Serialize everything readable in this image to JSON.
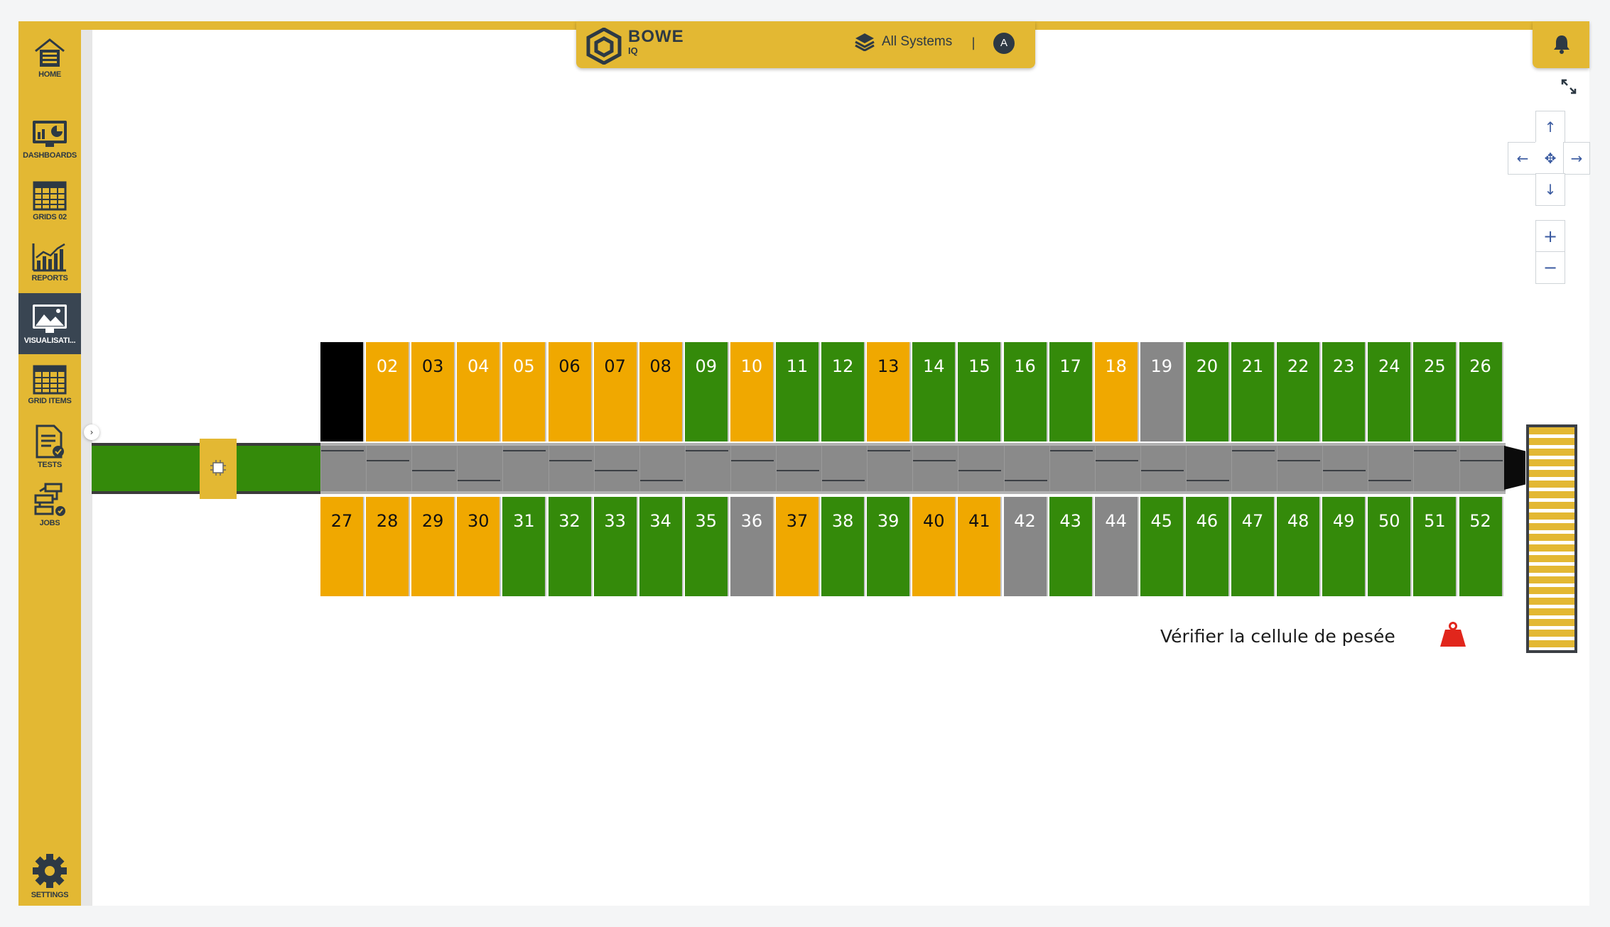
{
  "header": {
    "brand": "BOWE",
    "brand_sub": "IQ",
    "systems_label": "All Systems",
    "separator": "|",
    "avatar_initial": "A"
  },
  "sidebar": {
    "items": [
      {
        "label": "HOME",
        "icon": "home-icon"
      },
      {
        "label": "DASHBOARDS",
        "icon": "dashboard-icon"
      },
      {
        "label": "GRIDS 02",
        "icon": "grid-icon"
      },
      {
        "label": "REPORTS",
        "icon": "chart-icon"
      },
      {
        "label": "VISUALISATI...",
        "icon": "visualisation-icon",
        "active": true
      },
      {
        "label": "GRID ITEMS",
        "icon": "grid-icon"
      },
      {
        "label": "TESTS",
        "icon": "document-check-icon"
      },
      {
        "label": "JOBS",
        "icon": "workflow-icon"
      },
      {
        "label": "SETTINGS",
        "icon": "gear-icon"
      }
    ]
  },
  "controls": {
    "up": "↑",
    "down": "↓",
    "left": "←",
    "right": "→",
    "center": "✥",
    "zoom_in": "+",
    "zoom_out": "−"
  },
  "machine": {
    "status_message": "Vérifier la cellule de pesée",
    "status_icon": "weight-icon",
    "status_icon_color": "#e1261c",
    "colors": {
      "yellow": "#f0a800",
      "green": "#348a0a",
      "gray": "#878787",
      "black": "#000000"
    },
    "top_bins": [
      {
        "label": "",
        "color": "black"
      },
      {
        "label": "02",
        "color": "yellow"
      },
      {
        "label": "03",
        "color": "yellow",
        "dark": true
      },
      {
        "label": "04",
        "color": "yellow"
      },
      {
        "label": "05",
        "color": "yellow"
      },
      {
        "label": "06",
        "color": "yellow",
        "dark": true
      },
      {
        "label": "07",
        "color": "yellow",
        "dark": true
      },
      {
        "label": "08",
        "color": "yellow",
        "dark": true
      },
      {
        "label": "09",
        "color": "green"
      },
      {
        "label": "10",
        "color": "yellow"
      },
      {
        "label": "11",
        "color": "green"
      },
      {
        "label": "12",
        "color": "green"
      },
      {
        "label": "13",
        "color": "yellow",
        "dark": true
      },
      {
        "label": "14",
        "color": "green"
      },
      {
        "label": "15",
        "color": "green"
      },
      {
        "label": "16",
        "color": "green"
      },
      {
        "label": "17",
        "color": "green"
      },
      {
        "label": "18",
        "color": "yellow"
      },
      {
        "label": "19",
        "color": "gray"
      },
      {
        "label": "20",
        "color": "green"
      },
      {
        "label": "21",
        "color": "green"
      },
      {
        "label": "22",
        "color": "green"
      },
      {
        "label": "23",
        "color": "green"
      },
      {
        "label": "24",
        "color": "green"
      },
      {
        "label": "25",
        "color": "green"
      },
      {
        "label": "26",
        "color": "green"
      }
    ],
    "bottom_bins": [
      {
        "label": "27",
        "color": "yellow",
        "dark": true
      },
      {
        "label": "28",
        "color": "yellow",
        "dark": true
      },
      {
        "label": "29",
        "color": "yellow",
        "dark": true
      },
      {
        "label": "30",
        "color": "yellow",
        "dark": true
      },
      {
        "label": "31",
        "color": "green"
      },
      {
        "label": "32",
        "color": "green"
      },
      {
        "label": "33",
        "color": "green"
      },
      {
        "label": "34",
        "color": "green"
      },
      {
        "label": "35",
        "color": "green"
      },
      {
        "label": "36",
        "color": "gray"
      },
      {
        "label": "37",
        "color": "yellow",
        "dark": true
      },
      {
        "label": "38",
        "color": "green"
      },
      {
        "label": "39",
        "color": "green"
      },
      {
        "label": "40",
        "color": "yellow",
        "dark": true
      },
      {
        "label": "41",
        "color": "yellow",
        "dark": true
      },
      {
        "label": "42",
        "color": "gray"
      },
      {
        "label": "43",
        "color": "green"
      },
      {
        "label": "44",
        "color": "gray"
      },
      {
        "label": "45",
        "color": "green"
      },
      {
        "label": "46",
        "color": "green"
      },
      {
        "label": "47",
        "color": "green"
      },
      {
        "label": "48",
        "color": "green"
      },
      {
        "label": "49",
        "color": "green"
      },
      {
        "label": "50",
        "color": "green"
      },
      {
        "label": "51",
        "color": "green"
      },
      {
        "label": "52",
        "color": "green"
      }
    ]
  }
}
